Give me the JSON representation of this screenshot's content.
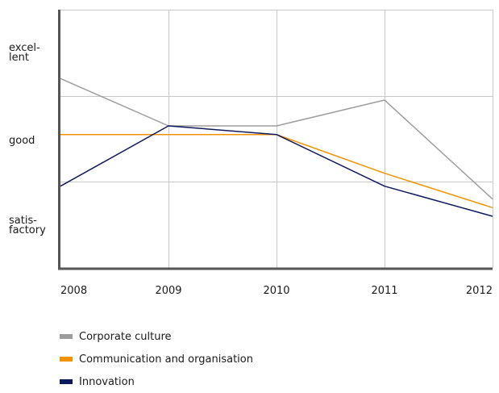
{
  "chart_data": {
    "type": "line",
    "x": [
      "2008",
      "2009",
      "2010",
      "2011",
      "2012"
    ],
    "y_ticks": [
      {
        "label": "satis-\nfactory",
        "value": 1
      },
      {
        "label": "good",
        "value": 2
      },
      {
        "label": "excel-\nlent",
        "value": 3
      }
    ],
    "ylim": [
      0.5,
      3.5
    ],
    "grid": true,
    "legend_position": "bottom-left",
    "series": [
      {
        "name": "Corporate culture",
        "color": "#9d9d9d",
        "values": [
          2.7,
          2.15,
          2.15,
          2.45,
          1.3
        ]
      },
      {
        "name": "Communication and organisation",
        "color": "#f39200",
        "values": [
          2.05,
          2.05,
          2.05,
          1.6,
          1.2
        ]
      },
      {
        "name": "Innovation",
        "color": "#0f1a5e",
        "values": [
          1.45,
          2.15,
          2.05,
          1.45,
          1.1
        ]
      }
    ]
  }
}
